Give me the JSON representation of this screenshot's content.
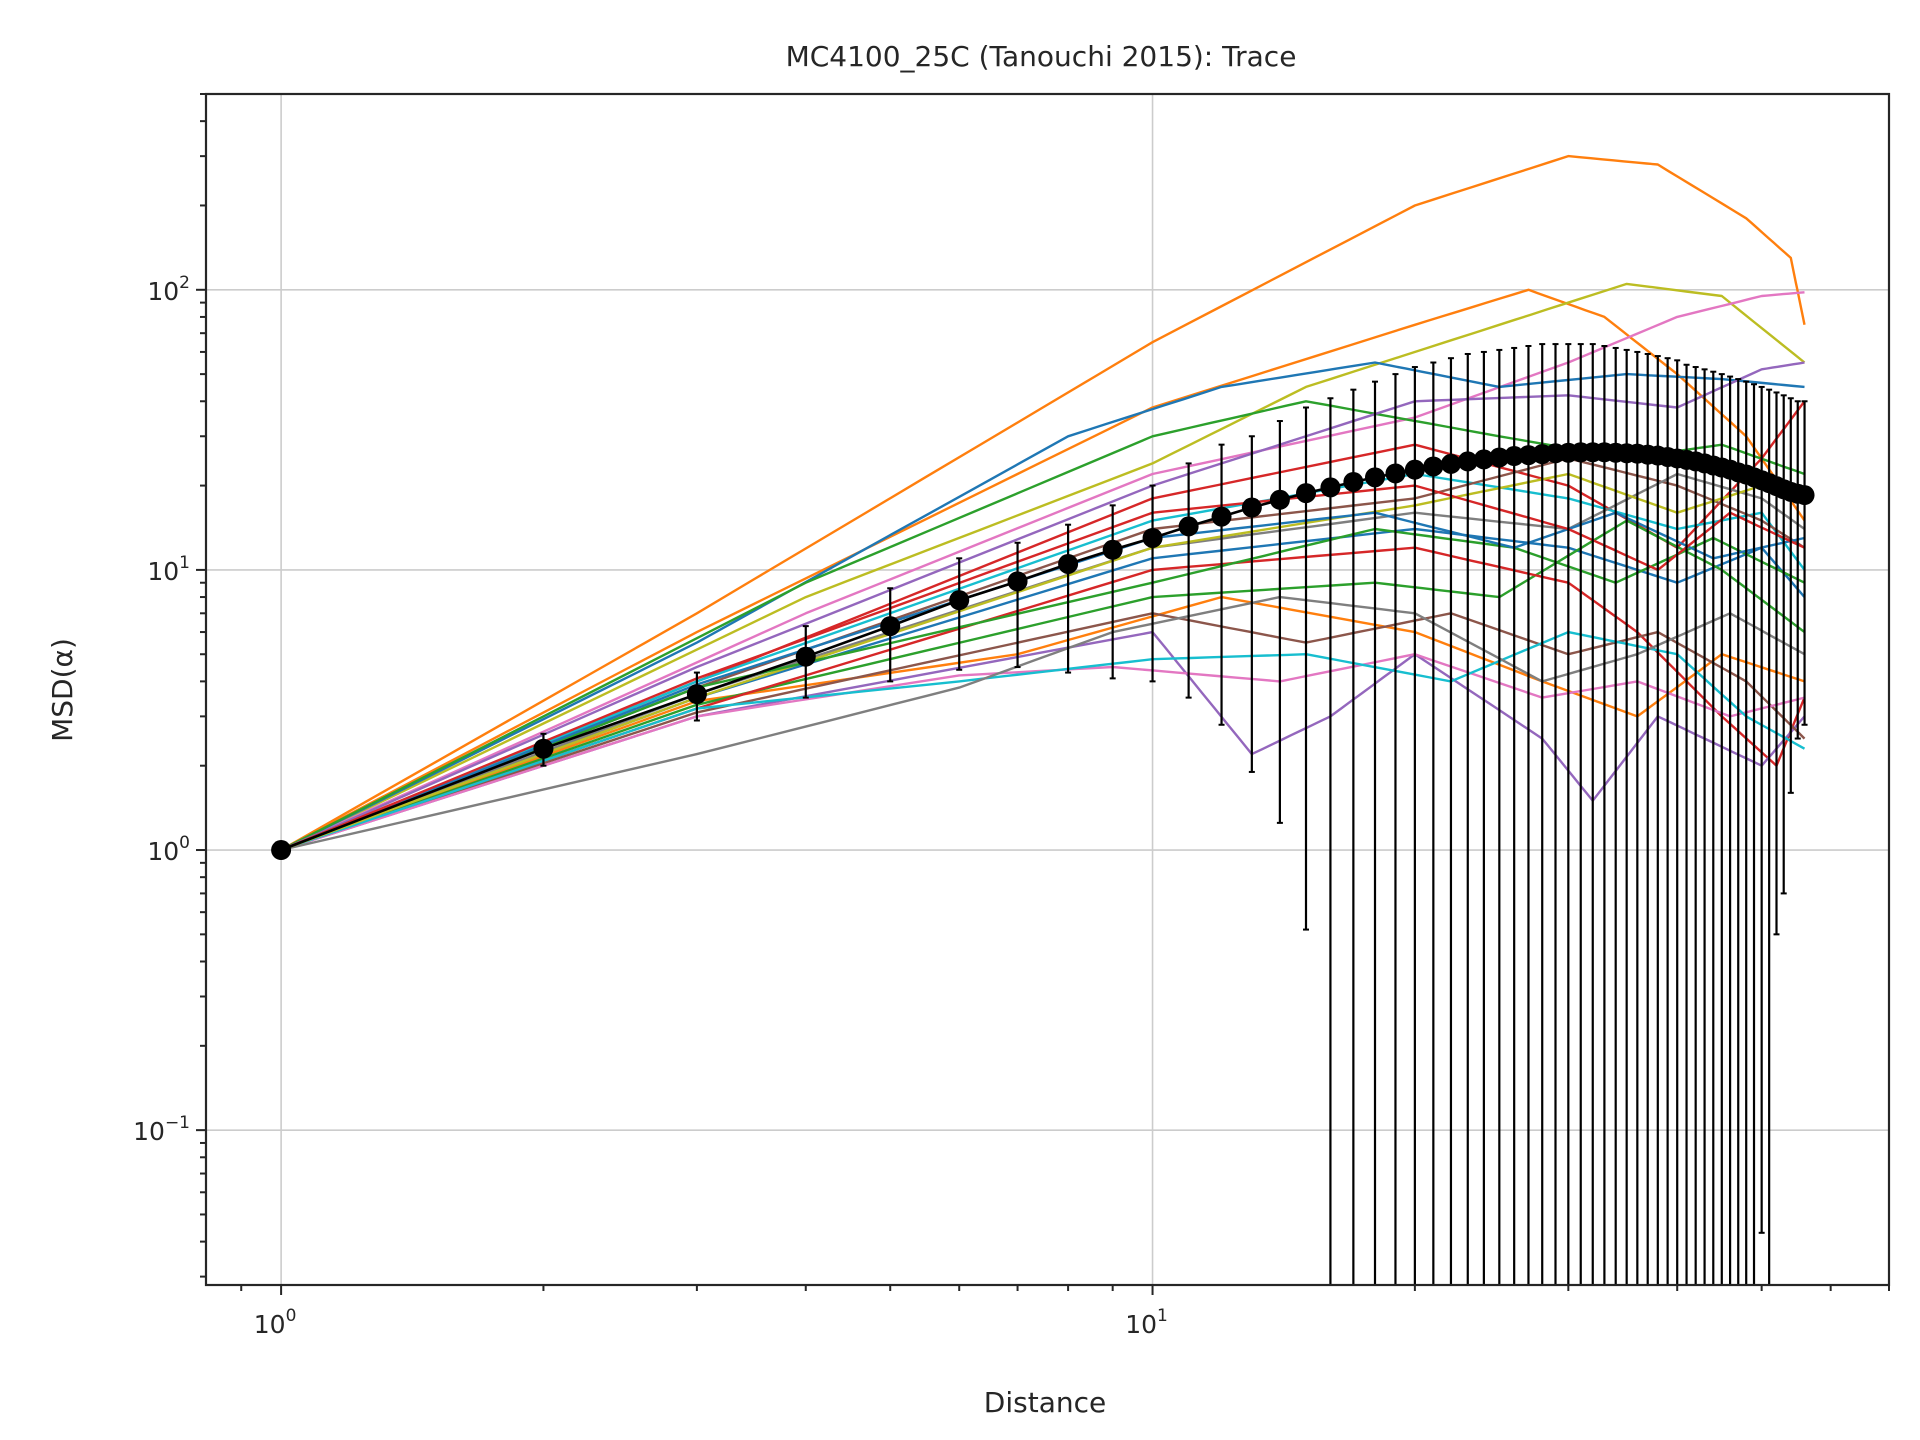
{
  "chart_data": {
    "type": "line",
    "title": "MC4100_25C (Tanouchi 2015): Trace",
    "xlabel": "Distance",
    "ylabel": "MSD(α)",
    "x_scale": "log",
    "y_scale": "log",
    "xlim": [
      0.82,
      70
    ],
    "ylim": [
      0.028,
      500
    ],
    "grid": true,
    "legend": "none",
    "x_ticks": [
      {
        "base": "10",
        "exp": "0",
        "value": 1
      },
      {
        "base": "10",
        "exp": "1",
        "value": 10
      }
    ],
    "y_ticks": [
      {
        "base": "10",
        "exp": "−1",
        "value": 0.1
      },
      {
        "base": "10",
        "exp": "0",
        "value": 1
      },
      {
        "base": "10",
        "exp": "1",
        "value": 10
      },
      {
        "base": "10",
        "exp": "2",
        "value": 100
      }
    ],
    "palette": [
      "#1f77b4",
      "#ff7f0e",
      "#2ca02c",
      "#d62728",
      "#9467bd",
      "#8c564b",
      "#e377c2",
      "#7f7f7f",
      "#bcbd22",
      "#17becf"
    ],
    "series": [
      {
        "color": "#ff7f0e",
        "points": [
          [
            1,
            1
          ],
          [
            3,
            7
          ],
          [
            10,
            65
          ],
          [
            20,
            200
          ],
          [
            30,
            300
          ],
          [
            38,
            280
          ],
          [
            48,
            180
          ],
          [
            54,
            130
          ],
          [
            56,
            75
          ]
        ]
      },
      {
        "color": "#ff7f0e",
        "points": [
          [
            1,
            1
          ],
          [
            3,
            6
          ],
          [
            10,
            38
          ],
          [
            20,
            75
          ],
          [
            27,
            100
          ],
          [
            33,
            80
          ],
          [
            40,
            50
          ],
          [
            48,
            30
          ],
          [
            56,
            15
          ]
        ]
      },
      {
        "color": "#bcbd22",
        "points": [
          [
            1,
            1
          ],
          [
            4,
            8
          ],
          [
            10,
            24
          ],
          [
            15,
            45
          ],
          [
            25,
            75
          ],
          [
            35,
            105
          ],
          [
            45,
            95
          ],
          [
            56,
            55
          ]
        ]
      },
      {
        "color": "#e377c2",
        "points": [
          [
            1,
            1
          ],
          [
            4,
            7
          ],
          [
            10,
            22
          ],
          [
            20,
            35
          ],
          [
            30,
            55
          ],
          [
            40,
            80
          ],
          [
            50,
            95
          ],
          [
            56,
            98
          ]
        ]
      },
      {
        "color": "#1f77b4",
        "points": [
          [
            1,
            1
          ],
          [
            3,
            5.5
          ],
          [
            8,
            30
          ],
          [
            12,
            45
          ],
          [
            18,
            55
          ],
          [
            25,
            45
          ],
          [
            35,
            50
          ],
          [
            45,
            48
          ],
          [
            56,
            45
          ]
        ]
      },
      {
        "color": "#2ca02c",
        "points": [
          [
            1,
            1
          ],
          [
            4,
            9
          ],
          [
            10,
            30
          ],
          [
            15,
            40
          ],
          [
            25,
            30
          ],
          [
            35,
            25
          ],
          [
            45,
            28
          ],
          [
            56,
            22
          ]
        ]
      },
      {
        "color": "#9467bd",
        "points": [
          [
            1,
            1
          ],
          [
            3,
            4.5
          ],
          [
            10,
            20
          ],
          [
            20,
            40
          ],
          [
            30,
            42
          ],
          [
            40,
            38
          ],
          [
            50,
            52
          ],
          [
            56,
            55
          ]
        ]
      },
      {
        "color": "#d62728",
        "points": [
          [
            1,
            1
          ],
          [
            3,
            4
          ],
          [
            10,
            18
          ],
          [
            20,
            28
          ],
          [
            30,
            20
          ],
          [
            40,
            12
          ],
          [
            50,
            25
          ],
          [
            56,
            40
          ]
        ]
      },
      {
        "color": "#17becf",
        "points": [
          [
            1,
            1
          ],
          [
            3,
            4
          ],
          [
            10,
            15
          ],
          [
            20,
            22
          ],
          [
            30,
            18
          ],
          [
            40,
            14
          ],
          [
            50,
            16
          ],
          [
            56,
            10
          ]
        ]
      },
      {
        "color": "#8c564b",
        "points": [
          [
            1,
            1
          ],
          [
            3,
            3.8
          ],
          [
            10,
            14
          ],
          [
            20,
            18
          ],
          [
            30,
            25
          ],
          [
            40,
            20
          ],
          [
            50,
            15
          ],
          [
            56,
            12
          ]
        ]
      },
      {
        "color": "#7f7f7f",
        "points": [
          [
            1,
            1
          ],
          [
            3,
            3.6
          ],
          [
            10,
            12
          ],
          [
            20,
            16
          ],
          [
            30,
            14
          ],
          [
            40,
            22
          ],
          [
            50,
            18
          ],
          [
            56,
            14
          ]
        ]
      },
      {
        "color": "#1f77b4",
        "points": [
          [
            1,
            1
          ],
          [
            3,
            3.5
          ],
          [
            10,
            11
          ],
          [
            20,
            14
          ],
          [
            30,
            12
          ],
          [
            40,
            9
          ],
          [
            50,
            12
          ],
          [
            56,
            8
          ]
        ]
      },
      {
        "color": "#ff7f0e",
        "points": [
          [
            1,
            1
          ],
          [
            3,
            3.4
          ],
          [
            7,
            5
          ],
          [
            12,
            8
          ],
          [
            20,
            6
          ],
          [
            28,
            4
          ],
          [
            36,
            3
          ],
          [
            45,
            5
          ],
          [
            56,
            4
          ]
        ]
      },
      {
        "color": "#2ca02c",
        "points": [
          [
            1,
            1
          ],
          [
            3,
            3.3
          ],
          [
            10,
            8
          ],
          [
            18,
            9
          ],
          [
            25,
            8
          ],
          [
            35,
            15
          ],
          [
            45,
            10
          ],
          [
            56,
            6
          ]
        ]
      },
      {
        "color": "#d62728",
        "points": [
          [
            1,
            1
          ],
          [
            3,
            3.2
          ],
          [
            10,
            10
          ],
          [
            20,
            12
          ],
          [
            30,
            9
          ],
          [
            36,
            6
          ],
          [
            45,
            3
          ],
          [
            52,
            2
          ],
          [
            56,
            3.5
          ]
        ]
      },
      {
        "color": "#9467bd",
        "points": [
          [
            1,
            1
          ],
          [
            3,
            3
          ],
          [
            10,
            6
          ],
          [
            13,
            2.2
          ],
          [
            16,
            3
          ],
          [
            20,
            5
          ],
          [
            28,
            2.5
          ],
          [
            32,
            1.5
          ],
          [
            38,
            3
          ],
          [
            50,
            2
          ],
          [
            56,
            3
          ]
        ]
      },
      {
        "color": "#8c564b",
        "points": [
          [
            1,
            1
          ],
          [
            3,
            3.1
          ],
          [
            10,
            7
          ],
          [
            15,
            5.5
          ],
          [
            22,
            7
          ],
          [
            30,
            5
          ],
          [
            38,
            6
          ],
          [
            48,
            4
          ],
          [
            56,
            2.5
          ]
        ]
      },
      {
        "color": "#e377c2",
        "points": [
          [
            1,
            1
          ],
          [
            3,
            3
          ],
          [
            6,
            4.2
          ],
          [
            9,
            4.5
          ],
          [
            14,
            4
          ],
          [
            20,
            5
          ],
          [
            28,
            3.5
          ],
          [
            36,
            4
          ],
          [
            46,
            3
          ],
          [
            56,
            3.5
          ]
        ]
      },
      {
        "color": "#17becf",
        "points": [
          [
            1,
            1
          ],
          [
            3,
            3.2
          ],
          [
            6,
            4
          ],
          [
            10,
            4.8
          ],
          [
            15,
            5
          ],
          [
            22,
            4
          ],
          [
            30,
            6
          ],
          [
            40,
            5
          ],
          [
            48,
            3
          ],
          [
            56,
            2.3
          ]
        ]
      },
      {
        "color": "#7f7f7f",
        "points": [
          [
            1,
            1
          ],
          [
            3,
            2.2
          ],
          [
            6,
            3.8
          ],
          [
            9,
            6
          ],
          [
            14,
            8
          ],
          [
            20,
            7
          ],
          [
            28,
            4
          ],
          [
            36,
            5
          ],
          [
            46,
            7
          ],
          [
            56,
            5
          ]
        ]
      },
      {
        "color": "#bcbd22",
        "points": [
          [
            1,
            1
          ],
          [
            3,
            3.5
          ],
          [
            10,
            12
          ],
          [
            20,
            17
          ],
          [
            30,
            22
          ],
          [
            40,
            16
          ],
          [
            50,
            20
          ],
          [
            56,
            18
          ]
        ]
      },
      {
        "color": "#2ca02c",
        "points": [
          [
            1,
            1
          ],
          [
            3,
            3.8
          ],
          [
            10,
            9
          ],
          [
            18,
            14
          ],
          [
            26,
            12
          ],
          [
            34,
            9
          ],
          [
            44,
            13
          ],
          [
            56,
            9
          ]
        ]
      },
      {
        "color": "#1f77b4",
        "points": [
          [
            1,
            1
          ],
          [
            3,
            3.9
          ],
          [
            10,
            13
          ],
          [
            18,
            16
          ],
          [
            26,
            12
          ],
          [
            34,
            16
          ],
          [
            44,
            11
          ],
          [
            56,
            13
          ]
        ]
      },
      {
        "color": "#d62728",
        "points": [
          [
            1,
            1
          ],
          [
            3,
            4.1
          ],
          [
            10,
            16
          ],
          [
            20,
            20
          ],
          [
            30,
            14
          ],
          [
            38,
            10
          ],
          [
            46,
            16
          ],
          [
            56,
            12
          ]
        ]
      }
    ],
    "mean": {
      "color": "#000000",
      "x": [
        1,
        2,
        3,
        4,
        5,
        6,
        7,
        8,
        9,
        10,
        11,
        12,
        13,
        14,
        15,
        16,
        17,
        18,
        19,
        20,
        21,
        22,
        23,
        24,
        25,
        26,
        27,
        28,
        29,
        30,
        31,
        32,
        33,
        34,
        35,
        36,
        37,
        38,
        39,
        40,
        41,
        42,
        43,
        44,
        45,
        46,
        47,
        48,
        49,
        50,
        51,
        52,
        53,
        54,
        55,
        56
      ],
      "y": [
        1,
        2.3,
        3.6,
        4.9,
        6.3,
        7.8,
        9.1,
        10.5,
        11.8,
        13,
        14.3,
        15.5,
        16.7,
        17.8,
        18.8,
        19.7,
        20.6,
        21.4,
        22.1,
        22.8,
        23.4,
        23.9,
        24.4,
        24.8,
        25.2,
        25.5,
        25.7,
        25.9,
        26.1,
        26.2,
        26.3,
        26.3,
        26.3,
        26.2,
        26.1,
        26,
        25.8,
        25.6,
        25.3,
        25,
        24.7,
        24.4,
        24,
        23.6,
        23.2,
        22.8,
        22.3,
        21.9,
        21.4,
        20.9,
        20.4,
        19.9,
        19.4,
        19,
        18.7,
        18.5
      ],
      "err_upper": [
        1,
        2.6,
        4.3,
        6.3,
        8.6,
        11,
        12.5,
        14.5,
        17,
        20,
        24,
        28,
        30,
        34,
        38,
        41,
        44,
        47,
        50,
        53,
        55,
        57,
        59,
        60,
        61,
        62,
        63,
        64,
        64,
        64,
        64,
        64,
        63,
        62,
        61,
        60,
        59,
        58,
        57,
        56,
        54,
        53,
        52,
        51,
        50,
        49,
        48,
        47,
        46,
        45,
        44,
        43,
        42,
        41,
        40,
        40
      ],
      "err_lower": [
        1,
        2.0,
        2.9,
        3.5,
        4.0,
        4.4,
        4.5,
        4.3,
        4.1,
        4.0,
        3.5,
        2.8,
        1.9,
        1.25,
        0.52,
        0.028,
        0.028,
        0.028,
        0.028,
        0.028,
        0.028,
        0.028,
        0.028,
        0.028,
        0.028,
        0.028,
        0.028,
        0.028,
        0.028,
        0.028,
        0.028,
        0.028,
        0.028,
        0.028,
        0.028,
        0.028,
        0.028,
        0.028,
        0.028,
        0.028,
        0.028,
        0.028,
        0.028,
        0.028,
        0.028,
        0.028,
        0.028,
        0.028,
        0.028,
        0.043,
        0.028,
        0.5,
        0.7,
        1.6,
        2.5,
        2.8
      ]
    }
  }
}
